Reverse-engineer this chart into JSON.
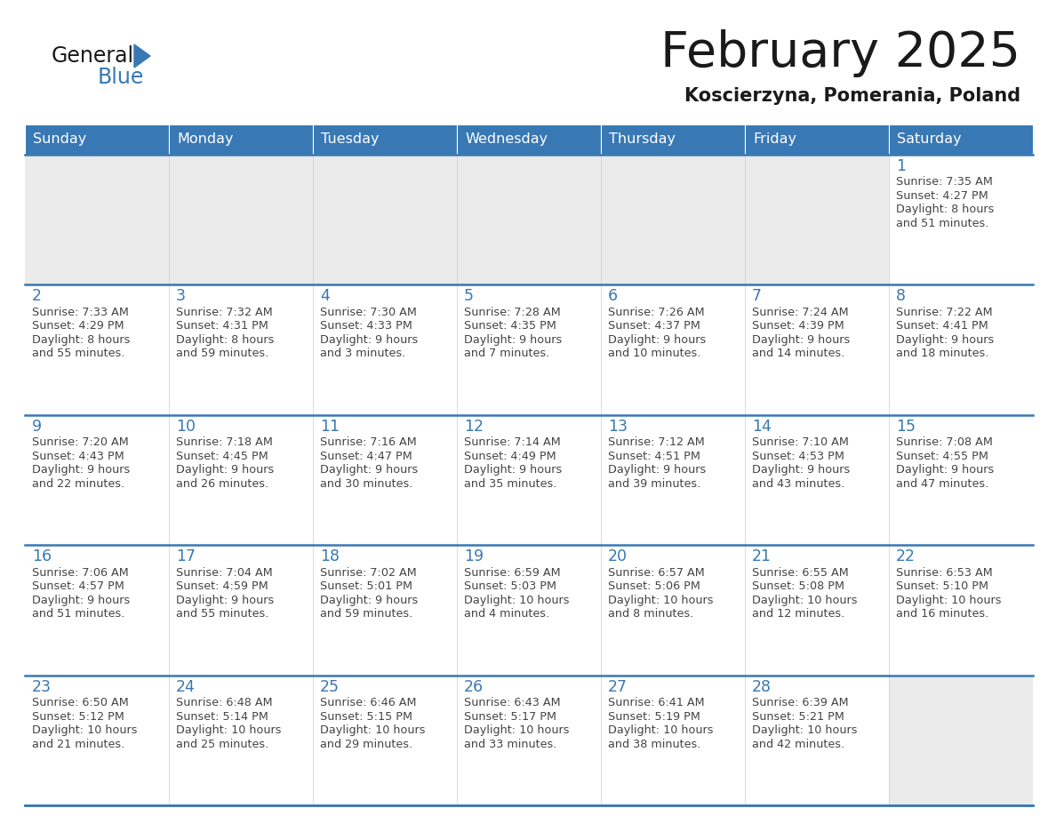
{
  "title": "February 2025",
  "subtitle": "Koscierzyna, Pomerania, Poland",
  "days_of_week": [
    "Sunday",
    "Monday",
    "Tuesday",
    "Wednesday",
    "Thursday",
    "Friday",
    "Saturday"
  ],
  "header_bg": "#3878b4",
  "header_text": "#ffffff",
  "cell_bg_gray": "#ebebeb",
  "cell_bg_white": "#ffffff",
  "border_color": "#3878b4",
  "day_number_color": "#3878b4",
  "text_color": "#444444",
  "logo_general_color": "#1a1a1a",
  "logo_blue_color": "#3878b4",
  "title_color": "#1a1a1a",
  "calendar": [
    [
      null,
      null,
      null,
      null,
      null,
      null,
      {
        "day": 1,
        "sunrise": "7:35 AM",
        "sunset": "4:27 PM",
        "daylight": "8 hours and 51 minutes."
      }
    ],
    [
      {
        "day": 2,
        "sunrise": "7:33 AM",
        "sunset": "4:29 PM",
        "daylight": "8 hours and 55 minutes."
      },
      {
        "day": 3,
        "sunrise": "7:32 AM",
        "sunset": "4:31 PM",
        "daylight": "8 hours and 59 minutes."
      },
      {
        "day": 4,
        "sunrise": "7:30 AM",
        "sunset": "4:33 PM",
        "daylight": "9 hours and 3 minutes."
      },
      {
        "day": 5,
        "sunrise": "7:28 AM",
        "sunset": "4:35 PM",
        "daylight": "9 hours and 7 minutes."
      },
      {
        "day": 6,
        "sunrise": "7:26 AM",
        "sunset": "4:37 PM",
        "daylight": "9 hours and 10 minutes."
      },
      {
        "day": 7,
        "sunrise": "7:24 AM",
        "sunset": "4:39 PM",
        "daylight": "9 hours and 14 minutes."
      },
      {
        "day": 8,
        "sunrise": "7:22 AM",
        "sunset": "4:41 PM",
        "daylight": "9 hours and 18 minutes."
      }
    ],
    [
      {
        "day": 9,
        "sunrise": "7:20 AM",
        "sunset": "4:43 PM",
        "daylight": "9 hours and 22 minutes."
      },
      {
        "day": 10,
        "sunrise": "7:18 AM",
        "sunset": "4:45 PM",
        "daylight": "9 hours and 26 minutes."
      },
      {
        "day": 11,
        "sunrise": "7:16 AM",
        "sunset": "4:47 PM",
        "daylight": "9 hours and 30 minutes."
      },
      {
        "day": 12,
        "sunrise": "7:14 AM",
        "sunset": "4:49 PM",
        "daylight": "9 hours and 35 minutes."
      },
      {
        "day": 13,
        "sunrise": "7:12 AM",
        "sunset": "4:51 PM",
        "daylight": "9 hours and 39 minutes."
      },
      {
        "day": 14,
        "sunrise": "7:10 AM",
        "sunset": "4:53 PM",
        "daylight": "9 hours and 43 minutes."
      },
      {
        "day": 15,
        "sunrise": "7:08 AM",
        "sunset": "4:55 PM",
        "daylight": "9 hours and 47 minutes."
      }
    ],
    [
      {
        "day": 16,
        "sunrise": "7:06 AM",
        "sunset": "4:57 PM",
        "daylight": "9 hours and 51 minutes."
      },
      {
        "day": 17,
        "sunrise": "7:04 AM",
        "sunset": "4:59 PM",
        "daylight": "9 hours and 55 minutes."
      },
      {
        "day": 18,
        "sunrise": "7:02 AM",
        "sunset": "5:01 PM",
        "daylight": "9 hours and 59 minutes."
      },
      {
        "day": 19,
        "sunrise": "6:59 AM",
        "sunset": "5:03 PM",
        "daylight": "10 hours and 4 minutes."
      },
      {
        "day": 20,
        "sunrise": "6:57 AM",
        "sunset": "5:06 PM",
        "daylight": "10 hours and 8 minutes."
      },
      {
        "day": 21,
        "sunrise": "6:55 AM",
        "sunset": "5:08 PM",
        "daylight": "10 hours and 12 minutes."
      },
      {
        "day": 22,
        "sunrise": "6:53 AM",
        "sunset": "5:10 PM",
        "daylight": "10 hours and 16 minutes."
      }
    ],
    [
      {
        "day": 23,
        "sunrise": "6:50 AM",
        "sunset": "5:12 PM",
        "daylight": "10 hours and 21 minutes."
      },
      {
        "day": 24,
        "sunrise": "6:48 AM",
        "sunset": "5:14 PM",
        "daylight": "10 hours and 25 minutes."
      },
      {
        "day": 25,
        "sunrise": "6:46 AM",
        "sunset": "5:15 PM",
        "daylight": "10 hours and 29 minutes."
      },
      {
        "day": 26,
        "sunrise": "6:43 AM",
        "sunset": "5:17 PM",
        "daylight": "10 hours and 33 minutes."
      },
      {
        "day": 27,
        "sunrise": "6:41 AM",
        "sunset": "5:19 PM",
        "daylight": "10 hours and 38 minutes."
      },
      {
        "day": 28,
        "sunrise": "6:39 AM",
        "sunset": "5:21 PM",
        "daylight": "10 hours and 42 minutes."
      },
      null
    ]
  ]
}
